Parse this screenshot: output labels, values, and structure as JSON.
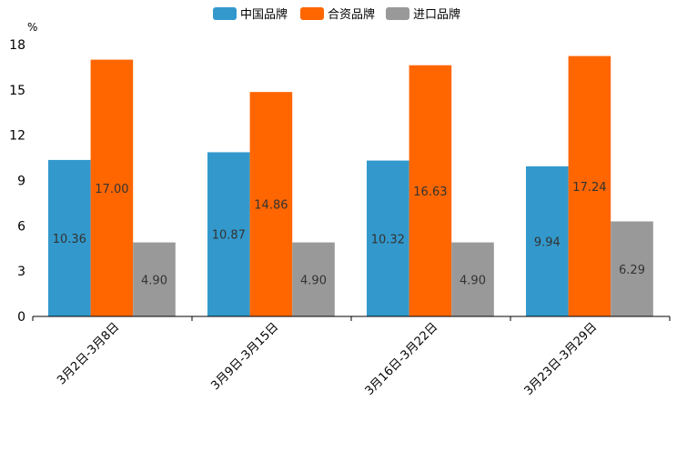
{
  "chart_data": {
    "type": "bar",
    "unit": "%",
    "categories": [
      "3月2日-3月8日",
      "3月9日-3月15日",
      "3月16日-3月22日",
      "3月23日-3月29日"
    ],
    "series": [
      {
        "name": "中国品牌",
        "color": "#3399cc",
        "values": [
          10.36,
          10.87,
          10.32,
          9.94
        ],
        "labels": [
          "10.36",
          "10.87",
          "10.32",
          "9.94"
        ]
      },
      {
        "name": "合资品牌",
        "color": "#ff6600",
        "values": [
          17.0,
          14.86,
          16.63,
          17.24
        ],
        "labels": [
          "17.00",
          "14.86",
          "16.63",
          "17.24"
        ]
      },
      {
        "name": "进口品牌",
        "color": "#999999",
        "values": [
          4.9,
          4.9,
          4.9,
          6.29
        ],
        "labels": [
          "4.90",
          "4.90",
          "4.90",
          "6.29"
        ]
      }
    ],
    "yticks": [
      "0",
      "3",
      "6",
      "9",
      "12",
      "15",
      "18"
    ],
    "ylim": [
      0,
      18
    ],
    "legend_position": "top-center"
  }
}
